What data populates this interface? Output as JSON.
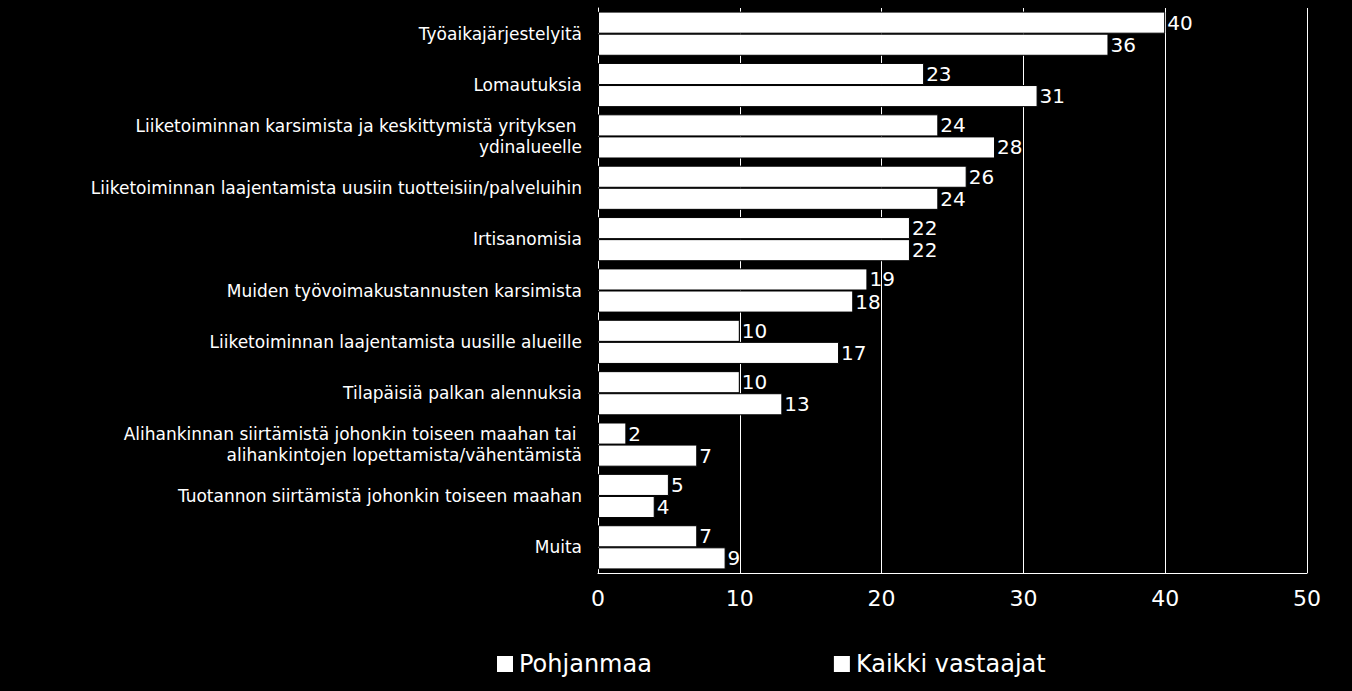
{
  "chart_data": {
    "type": "bar",
    "orientation": "horizontal",
    "categories": [
      "Työaikajärjestelyitä",
      "Lomautuksia",
      "Liiketoiminnan karsimista ja keskittymistä yrityksen ydinalueelle",
      "Liiketoiminnan laajentamista uusiin tuotteisiin/palveluihin",
      "Irtisanomisia",
      "Muiden työvoimakustannusten karsimista",
      "Liiketoiminnan laajentamista uusille alueille",
      "Tilapäisiä palkan alennuksia",
      "Alihankinnan siirtämistä johonkin toiseen maahan tai alihankintojen lopettamista/vähentämistä",
      "Tuotannon siirtämistä johonkin toiseen maahan",
      "Muita"
    ],
    "series": [
      {
        "name": "Pohjanmaa",
        "color": "#ffffff",
        "values": [
          40,
          23,
          24,
          26,
          22,
          19,
          10,
          10,
          2,
          5,
          7
        ]
      },
      {
        "name": "Kaikki vastaajat",
        "color": "#ffffff",
        "values": [
          36,
          31,
          28,
          24,
          22,
          18,
          17,
          13,
          7,
          4,
          9
        ]
      }
    ],
    "xlim": [
      0,
      50
    ],
    "xticks": [
      0,
      10,
      20,
      30,
      40,
      50
    ],
    "grid": true,
    "legend": "bottom",
    "data_labels": true
  }
}
